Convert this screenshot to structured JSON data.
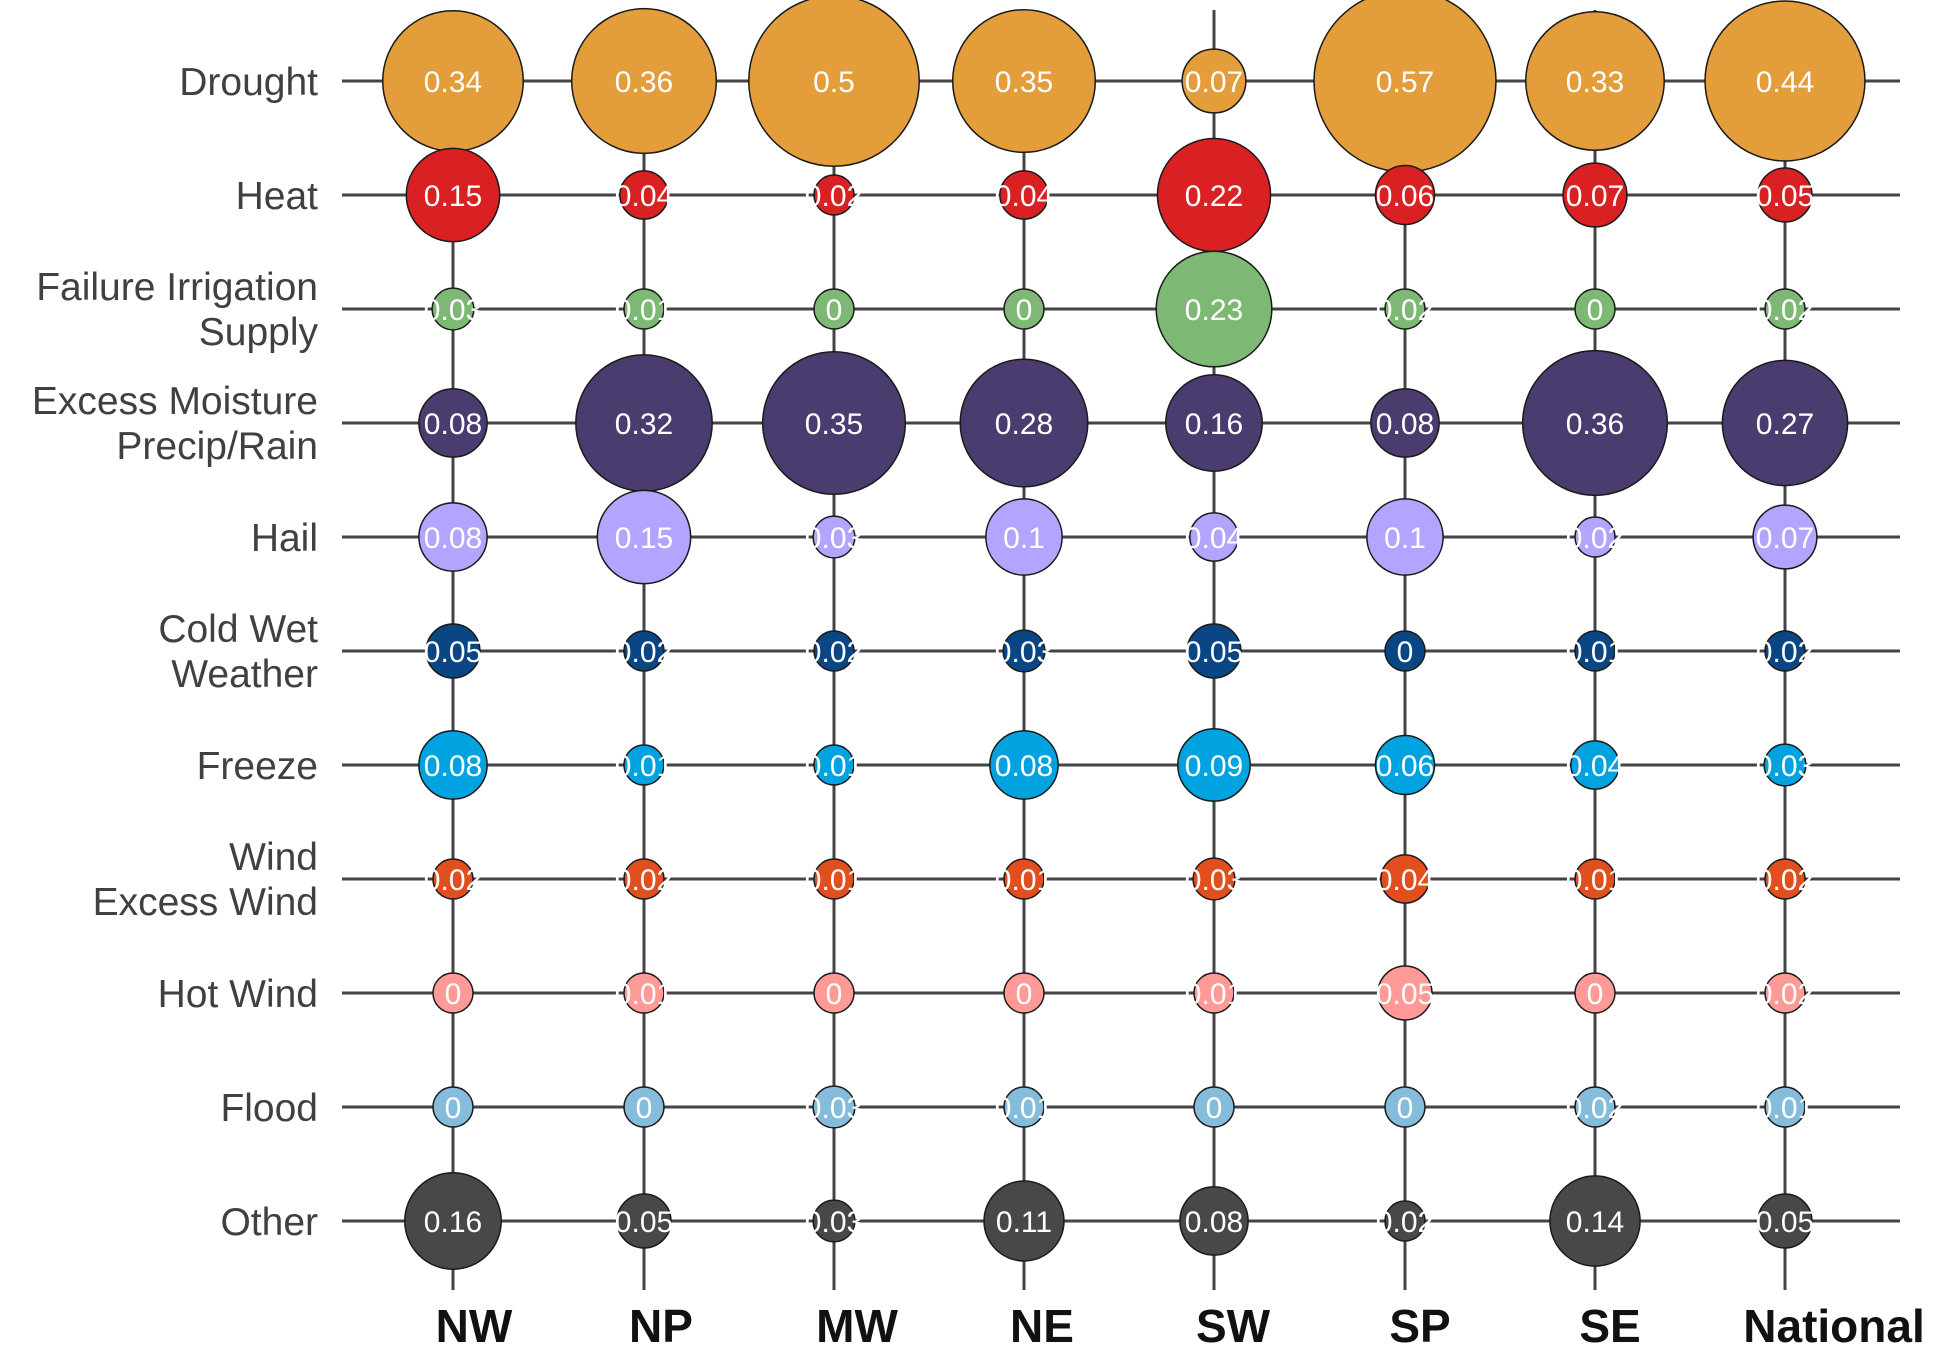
{
  "chart_data": {
    "type": "bubble-matrix",
    "title": "",
    "xlabel": "",
    "ylabel": "",
    "grid": true,
    "legend": "none",
    "regions": [
      "NW",
      "NP",
      "MW",
      "NE",
      "SW",
      "SP",
      "SE",
      "National"
    ],
    "causes": [
      {
        "label": [
          "Drought"
        ],
        "color": "#E39D3A",
        "values": [
          0.34,
          0.36,
          0.5,
          0.35,
          0.07,
          0.57,
          0.33,
          0.44
        ]
      },
      {
        "label": [
          "Heat"
        ],
        "color": "#D92123",
        "values": [
          0.15,
          0.04,
          0.02,
          0.04,
          0.22,
          0.06,
          0.07,
          0.05
        ]
      },
      {
        "label": [
          "Failure Irrigation",
          "Supply"
        ],
        "color": "#7DB874",
        "values": [
          0.03,
          0.01,
          0,
          0,
          0.23,
          0.02,
          0,
          0.02
        ]
      },
      {
        "label": [
          "Excess Moisture",
          "Precip/Rain"
        ],
        "color": "#4A3C6E",
        "values": [
          0.08,
          0.32,
          0.35,
          0.28,
          0.16,
          0.08,
          0.36,
          0.27
        ]
      },
      {
        "label": [
          "Hail"
        ],
        "color": "#B3A4FF",
        "values": [
          0.08,
          0.15,
          0.03,
          0.1,
          0.04,
          0.1,
          0.02,
          0.07
        ]
      },
      {
        "label": [
          "Cold Wet",
          "Weather"
        ],
        "color": "#0A4584",
        "values": [
          0.05,
          0.02,
          0.02,
          0.03,
          0.05,
          0,
          0.01,
          0.02
        ]
      },
      {
        "label": [
          "Freeze"
        ],
        "color": "#00A3E0",
        "values": [
          0.08,
          0.01,
          0.01,
          0.08,
          0.09,
          0.06,
          0.04,
          0.03
        ]
      },
      {
        "label": [
          "Wind",
          "Excess Wind"
        ],
        "color": "#E04F1D",
        "values": [
          0.02,
          0.02,
          0.01,
          0.01,
          0.03,
          0.04,
          0.01,
          0.02
        ]
      },
      {
        "label": [
          "Hot Wind"
        ],
        "color": "#FF9A96",
        "values": [
          0,
          0.01,
          0,
          0,
          0.01,
          0.05,
          0,
          0.02
        ]
      },
      {
        "label": [
          "Flood"
        ],
        "color": "#85BCDB",
        "values": [
          0,
          0,
          0.03,
          0.01,
          0,
          0,
          0.02,
          0.01
        ]
      },
      {
        "label": [
          "Other"
        ],
        "color": "#484848",
        "values": [
          0.16,
          0.05,
          0.03,
          0.11,
          0.08,
          0.02,
          0.14,
          0.05
        ]
      }
    ]
  }
}
